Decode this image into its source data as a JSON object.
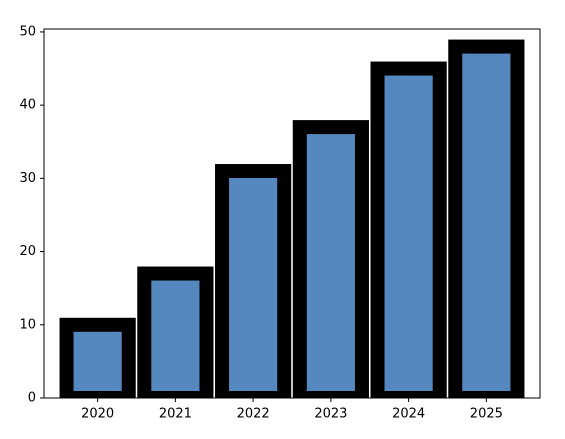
{
  "chart_data": {
    "type": "bar",
    "categories": [
      "2020",
      "2021",
      "2022",
      "2023",
      "2024",
      "2025"
    ],
    "values": [
      10,
      17,
      31,
      37,
      45,
      48
    ],
    "color": "#5588bf",
    "edgecolor": "#000000",
    "ylim": [
      0,
      50.4
    ],
    "yticks": [
      0,
      10,
      20,
      30,
      40,
      50
    ],
    "grid": false
  }
}
